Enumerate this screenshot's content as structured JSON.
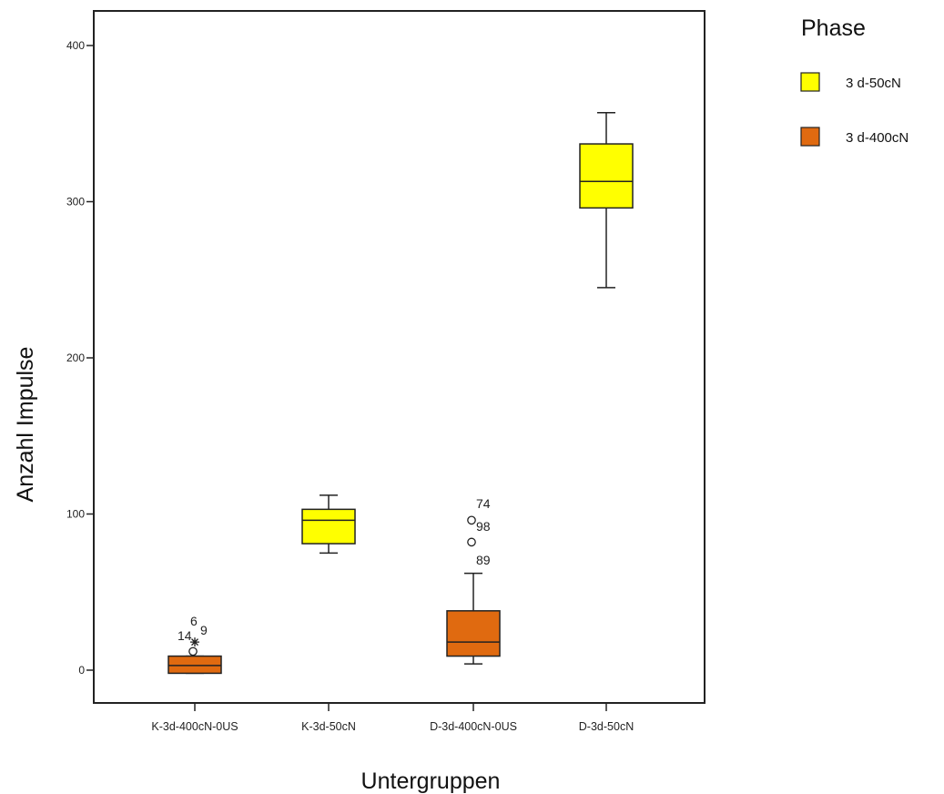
{
  "chart_data": {
    "type": "boxplot",
    "xlabel": "Untergruppen",
    "ylabel": "Anzahl Impulse",
    "ylim": [
      -20,
      425
    ],
    "yticks": [
      0,
      100,
      200,
      300,
      400
    ],
    "grid": false,
    "legend_position": "top-right",
    "legend": {
      "title": "Phase",
      "entries": [
        {
          "label": "3 d-50cN",
          "color": "#ffff00"
        },
        {
          "label": "3 d-400cN",
          "color": "#e06a10"
        }
      ]
    },
    "categories": [
      "K-3d-400cN-0US",
      "K-3d-50cN",
      "D-3d-400cN-0US",
      "D-3d-50cN"
    ],
    "boxes": [
      {
        "category": "K-3d-400cN-0US",
        "phase": "3 d-400cN",
        "color": "#e06a10",
        "whisker_low": -2,
        "q1": -2,
        "median": 3,
        "q3": 9,
        "whisker_high": 9,
        "outliers": [
          {
            "value": 12,
            "label": "",
            "marker": "circle"
          },
          {
            "value": 18,
            "label": "14",
            "marker": "star"
          },
          {
            "value": 22,
            "label": "6",
            "marker": "none"
          },
          {
            "value": 19,
            "label": "9",
            "marker": "none"
          }
        ]
      },
      {
        "category": "K-3d-50cN",
        "phase": "3 d-50cN",
        "color": "#ffff00",
        "whisker_low": 75,
        "q1": 81,
        "median": 96,
        "q3": 103,
        "whisker_high": 112,
        "outliers": []
      },
      {
        "category": "D-3d-400cN-0US",
        "phase": "3 d-400cN",
        "color": "#e06a10",
        "whisker_low": 4,
        "q1": 9,
        "median": 18,
        "q3": 38,
        "whisker_high": 62,
        "outliers": [
          {
            "value": 96,
            "label": "74",
            "marker": "circle"
          },
          {
            "value": 82,
            "label": "98",
            "marker": "circle"
          },
          {
            "value": 82,
            "label": "89",
            "marker": "none"
          }
        ]
      },
      {
        "category": "D-3d-50cN",
        "phase": "3 d-50cN",
        "color": "#ffff00",
        "whisker_low": 245,
        "q1": 296,
        "median": 313,
        "q3": 337,
        "whisker_high": 357,
        "outliers": []
      }
    ]
  }
}
